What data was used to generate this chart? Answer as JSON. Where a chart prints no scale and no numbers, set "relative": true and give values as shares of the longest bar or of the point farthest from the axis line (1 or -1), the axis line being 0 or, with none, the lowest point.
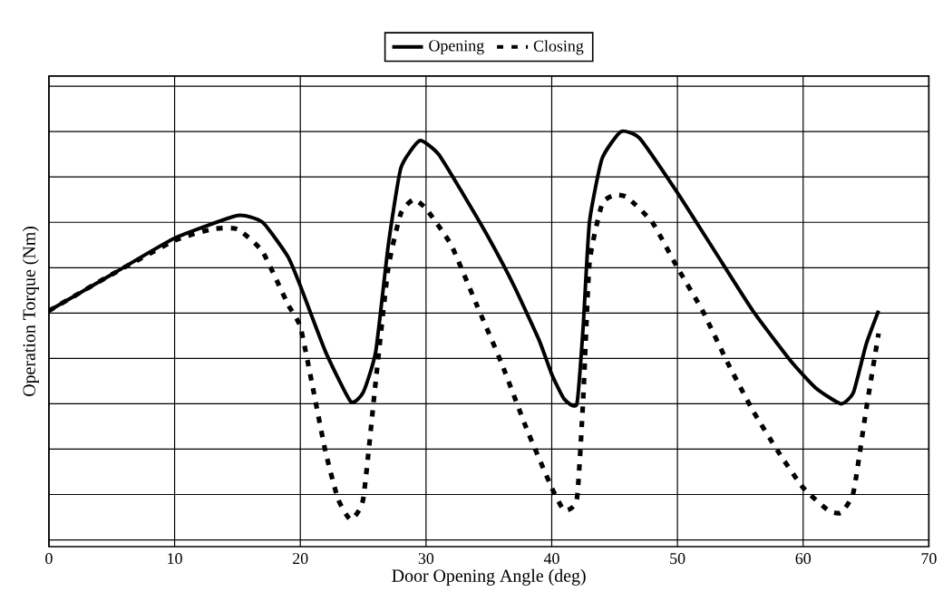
{
  "chart_data": {
    "type": "line",
    "xlabel": "Door Opening Angle (deg)",
    "ylabel": "Operation Torque (Nm)",
    "relative": true,
    "xlim": [
      0,
      70
    ],
    "xticks": [
      0,
      10,
      20,
      30,
      40,
      50,
      60,
      70
    ],
    "grid": true,
    "legend": "top",
    "marker": "none",
    "series": [
      {
        "name": "Opening",
        "color": "#000000",
        "line_style": "solid",
        "x": [
          0,
          5,
          10,
          15,
          17,
          19,
          20,
          22,
          24,
          25,
          26,
          27,
          28,
          29.5,
          31,
          33,
          35,
          37,
          39,
          40,
          41,
          42,
          42.5,
          43,
          44,
          45.5,
          47,
          50,
          53,
          56,
          59,
          61,
          63,
          64,
          65,
          66
        ],
        "values": [
          0.21,
          0.37,
          0.53,
          0.63,
          0.6,
          0.45,
          0.32,
          0.03,
          -0.19,
          -0.15,
          0.03,
          0.5,
          0.84,
          0.96,
          0.9,
          0.72,
          0.53,
          0.32,
          0.08,
          -0.07,
          -0.18,
          -0.2,
          0.14,
          0.6,
          0.88,
          1.0,
          0.97,
          0.73,
          0.47,
          0.21,
          -0.01,
          -0.13,
          -0.2,
          -0.15,
          0.06,
          0.21
        ]
      },
      {
        "name": "Closing",
        "color": "#000000",
        "line_style": "dashed",
        "x": [
          0,
          5,
          10,
          13,
          15,
          17,
          19,
          20,
          21,
          22,
          23,
          24,
          25,
          26,
          27,
          28,
          29,
          30,
          32,
          34,
          36,
          38,
          40,
          41,
          42,
          42.5,
          43,
          44,
          45,
          46,
          48,
          50,
          52,
          54,
          56,
          58,
          60,
          62,
          63,
          64,
          65,
          66
        ],
        "values": [
          0.21,
          0.37,
          0.52,
          0.57,
          0.57,
          0.47,
          0.24,
          0.14,
          -0.13,
          -0.41,
          -0.62,
          -0.71,
          -0.62,
          -0.1,
          0.4,
          0.64,
          0.7,
          0.66,
          0.5,
          0.24,
          -0.02,
          -0.31,
          -0.57,
          -0.67,
          -0.62,
          -0.18,
          0.42,
          0.68,
          0.72,
          0.71,
          0.6,
          0.4,
          0.21,
          -0.02,
          -0.23,
          -0.41,
          -0.57,
          -0.67,
          -0.68,
          -0.59,
          -0.23,
          0.11
        ]
      }
    ]
  }
}
